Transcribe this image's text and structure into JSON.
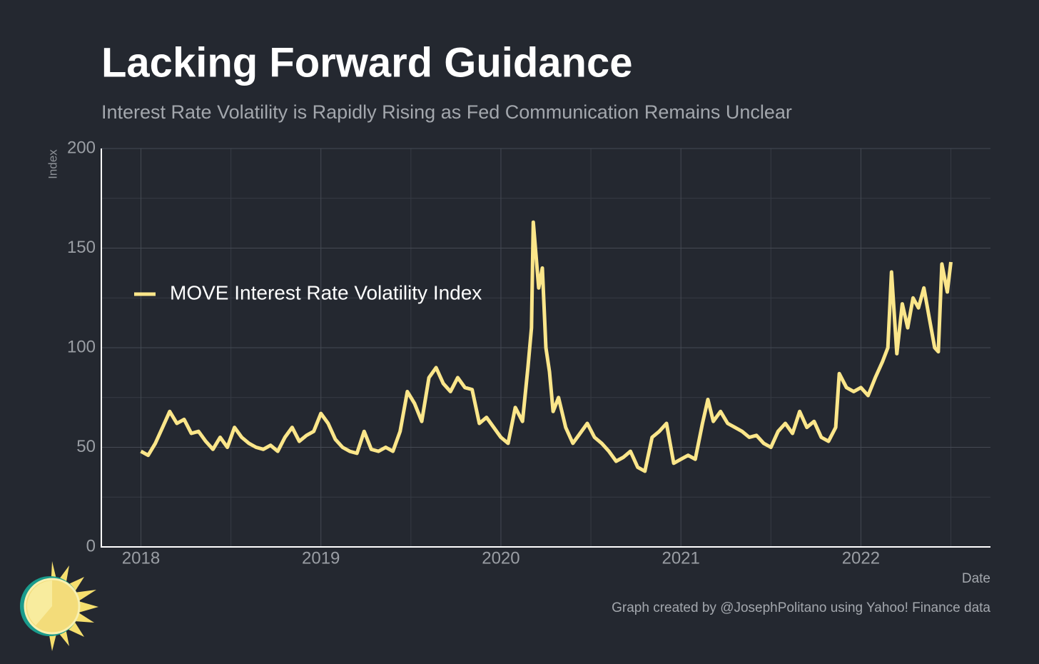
{
  "chart_data": {
    "type": "line",
    "title": "Lacking Forward Guidance",
    "subtitle": "Interest Rate Volatility is Rapidly Rising as Fed Communication Remains Unclear",
    "y_label": "Index",
    "x_label": "Date",
    "source": "Graph created by @JosephPolitano using Yahoo! Finance data",
    "xlim": [
      2017.78,
      2022.72
    ],
    "xticks": [
      2018,
      2019,
      2020,
      2021,
      2022
    ],
    "ylim": [
      0,
      200
    ],
    "yticks": [
      0,
      50,
      100,
      150,
      200
    ],
    "grid": true,
    "legend": "upper-left",
    "series": [
      {
        "name": "MOVE Interest Rate Volatility Index",
        "color": "#fbe68a",
        "x": [
          2018.0,
          2018.04,
          2018.08,
          2018.12,
          2018.16,
          2018.2,
          2018.24,
          2018.28,
          2018.32,
          2018.36,
          2018.4,
          2018.44,
          2018.48,
          2018.52,
          2018.56,
          2018.6,
          2018.64,
          2018.68,
          2018.72,
          2018.76,
          2018.8,
          2018.84,
          2018.88,
          2018.92,
          2018.96,
          2019.0,
          2019.04,
          2019.08,
          2019.12,
          2019.16,
          2019.2,
          2019.24,
          2019.28,
          2019.32,
          2019.36,
          2019.4,
          2019.44,
          2019.48,
          2019.52,
          2019.56,
          2019.6,
          2019.64,
          2019.68,
          2019.72,
          2019.76,
          2019.8,
          2019.84,
          2019.88,
          2019.92,
          2019.96,
          2020.0,
          2020.04,
          2020.08,
          2020.12,
          2020.15,
          2020.17,
          2020.18,
          2020.21,
          2020.23,
          2020.25,
          2020.27,
          2020.29,
          2020.32,
          2020.36,
          2020.4,
          2020.44,
          2020.48,
          2020.52,
          2020.56,
          2020.6,
          2020.64,
          2020.68,
          2020.72,
          2020.76,
          2020.8,
          2020.84,
          2020.88,
          2020.92,
          2020.96,
          2021.0,
          2021.04,
          2021.08,
          2021.12,
          2021.15,
          2021.18,
          2021.22,
          2021.26,
          2021.3,
          2021.34,
          2021.38,
          2021.42,
          2021.46,
          2021.5,
          2021.54,
          2021.58,
          2021.62,
          2021.66,
          2021.7,
          2021.74,
          2021.78,
          2021.82,
          2021.86,
          2021.88,
          2021.92,
          2021.96,
          2022.0,
          2022.04,
          2022.08,
          2022.12,
          2022.15,
          2022.17,
          2022.2,
          2022.23,
          2022.26,
          2022.29,
          2022.32,
          2022.35,
          2022.38,
          2022.41,
          2022.43,
          2022.45,
          2022.48,
          2022.5
        ],
        "values": [
          48,
          46,
          52,
          60,
          68,
          62,
          64,
          57,
          58,
          53,
          49,
          55,
          50,
          60,
          55,
          52,
          50,
          49,
          51,
          48,
          55,
          60,
          53,
          56,
          58,
          67,
          62,
          54,
          50,
          48,
          47,
          58,
          49,
          48,
          50,
          48,
          58,
          78,
          72,
          63,
          85,
          90,
          82,
          78,
          85,
          80,
          79,
          62,
          65,
          60,
          55,
          52,
          70,
          63,
          90,
          110,
          163,
          130,
          140,
          100,
          88,
          68,
          75,
          60,
          52,
          57,
          62,
          55,
          52,
          48,
          43,
          45,
          48,
          40,
          38,
          55,
          58,
          62,
          42,
          44,
          46,
          44,
          62,
          74,
          63,
          68,
          62,
          60,
          58,
          55,
          56,
          52,
          50,
          58,
          62,
          57,
          68,
          60,
          63,
          55,
          53,
          60,
          87,
          80,
          78,
          80,
          76,
          85,
          93,
          100,
          138,
          97,
          122,
          110,
          125,
          120,
          130,
          115,
          100,
          98,
          142,
          128,
          143
        ]
      }
    ]
  }
}
